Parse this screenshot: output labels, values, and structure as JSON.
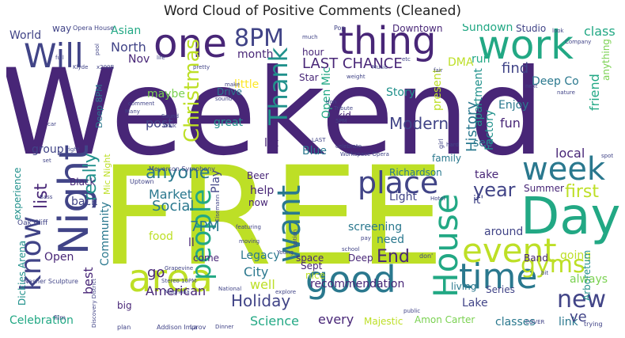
{
  "title": "Word Cloud of Positive Comments (Cleaned)",
  "palette": {
    "dark_purple": "#482677",
    "indigo": "#414487",
    "blue": "#2a788e",
    "teal": "#21918c",
    "green": "#22a884",
    "light_green": "#7ad151",
    "lime": "#bddf26",
    "yellow": "#fde725"
  },
  "words": [
    {
      "text": "Weekend",
      "color": "#482677"
    },
    {
      "text": "FREE",
      "color": "#bddf26"
    },
    {
      "text": "Night",
      "color": "#414487"
    },
    {
      "text": "Day",
      "color": "#22a884"
    },
    {
      "text": "work",
      "color": "#22a884"
    },
    {
      "text": "one",
      "color": "#482677"
    },
    {
      "text": "thing",
      "color": "#482677"
    },
    {
      "text": "Will",
      "color": "#414487"
    },
    {
      "text": "area",
      "color": "#bddf26"
    },
    {
      "text": "good",
      "color": "#2a788e"
    },
    {
      "text": "time",
      "color": "#2a788e"
    },
    {
      "text": "event",
      "color": "#bddf26"
    },
    {
      "text": "week",
      "color": "#2a788e"
    },
    {
      "text": "House",
      "color": "#22a884"
    },
    {
      "text": "want",
      "color": "#2a788e"
    },
    {
      "text": "place",
      "color": "#414487"
    },
    {
      "text": "know",
      "color": "#414487"
    },
    {
      "text": "people",
      "color": "#22a884"
    },
    {
      "text": "gyms",
      "color": "#bddf26"
    },
    {
      "text": "new",
      "color": "#414487"
    },
    {
      "text": "Thank",
      "color": "#21918c"
    },
    {
      "text": "8PM",
      "color": "#414487"
    },
    {
      "text": "Christmas",
      "color": "#bddf26"
    },
    {
      "text": "LAST CHANCE",
      "color": "#482677"
    },
    {
      "text": "Holiday",
      "color": "#414487"
    },
    {
      "text": "Modern",
      "color": "#414487"
    },
    {
      "text": "anyone",
      "color": "#2a788e"
    },
    {
      "text": "list",
      "color": "#482677"
    },
    {
      "text": "really",
      "color": "#21918c"
    },
    {
      "text": "first",
      "color": "#bddf26"
    },
    {
      "text": "year",
      "color": "#414487"
    },
    {
      "text": "End",
      "color": "#482677"
    },
    {
      "text": "Social",
      "color": "#2a788e"
    },
    {
      "text": "Market",
      "color": "#2a788e"
    },
    {
      "text": "7PM",
      "color": "#2a788e"
    },
    {
      "text": "American",
      "color": "#482677"
    },
    {
      "text": "City",
      "color": "#2a788e"
    },
    {
      "text": "well",
      "color": "#bddf26"
    },
    {
      "text": "Science",
      "color": "#22a884"
    },
    {
      "text": "Open Mic",
      "color": "#22a884"
    },
    {
      "text": "History",
      "color": "#2a788e"
    },
    {
      "text": "fun",
      "color": "#482677"
    },
    {
      "text": "Enjoy",
      "color": "#2a788e"
    },
    {
      "text": "find",
      "color": "#414487"
    },
    {
      "text": "friend",
      "color": "#22a884"
    },
    {
      "text": "class",
      "color": "#22a884"
    },
    {
      "text": "Sundown",
      "color": "#22a884"
    },
    {
      "text": "Studio",
      "color": "#414487"
    },
    {
      "text": "Downtown",
      "color": "#482677"
    },
    {
      "text": "Asian",
      "color": "#22a884"
    },
    {
      "text": "North",
      "color": "#414487"
    },
    {
      "text": "World",
      "color": "#414487"
    },
    {
      "text": "Nov",
      "color": "#482677"
    },
    {
      "text": "month",
      "color": "#482677"
    },
    {
      "text": "hour",
      "color": "#482677"
    },
    {
      "text": "little",
      "color": "#fde725"
    },
    {
      "text": "maybe",
      "color": "#7ad151"
    },
    {
      "text": "post",
      "color": "#414487"
    },
    {
      "text": "great",
      "color": "#21918c"
    },
    {
      "text": "Drive",
      "color": "#2a788e"
    },
    {
      "text": "Star",
      "color": "#482677"
    },
    {
      "text": "Story",
      "color": "#21918c"
    },
    {
      "text": "kid",
      "color": "#482677"
    },
    {
      "text": "present",
      "color": "#bddf26"
    },
    {
      "text": "apartment",
      "color": "#21918c"
    },
    {
      "text": "Factory",
      "color": "#21918c"
    },
    {
      "text": "see",
      "color": "#2a788e"
    },
    {
      "text": "DMA",
      "color": "#bddf26"
    },
    {
      "text": "run",
      "color": "#22a884"
    },
    {
      "text": "Deep Co",
      "color": "#2a788e"
    },
    {
      "text": "anything",
      "color": "#7ad151"
    },
    {
      "text": "lot",
      "color": "#482677"
    },
    {
      "text": "Blue",
      "color": "#2a788e"
    },
    {
      "text": "Light",
      "color": "#414487"
    },
    {
      "text": "Richardson",
      "color": "#2a788e"
    },
    {
      "text": "family",
      "color": "#2a788e"
    },
    {
      "text": "take",
      "color": "#482677"
    },
    {
      "text": "it'",
      "color": "#414487"
    },
    {
      "text": "local",
      "color": "#482677"
    },
    {
      "text": "help",
      "color": "#482677"
    },
    {
      "text": "Beer",
      "color": "#482677"
    },
    {
      "text": "now",
      "color": "#482677"
    },
    {
      "text": "group",
      "color": "#414487"
    },
    {
      "text": "experience",
      "color": "#21918c"
    },
    {
      "text": "Black",
      "color": "#482677"
    },
    {
      "text": "back",
      "color": "#414487"
    },
    {
      "text": "Community",
      "color": "#2a788e"
    },
    {
      "text": "best",
      "color": "#482677"
    },
    {
      "text": "Open",
      "color": "#482677"
    },
    {
      "text": "go",
      "color": "#482677"
    },
    {
      "text": "food",
      "color": "#bddf26"
    },
    {
      "text": "ll",
      "color": "#482677"
    },
    {
      "text": "come",
      "color": "#482677"
    },
    {
      "text": "Legacy",
      "color": "#2a788e"
    },
    {
      "text": "screening",
      "color": "#2a788e"
    },
    {
      "text": "need",
      "color": "#2a788e"
    },
    {
      "text": "around",
      "color": "#414487"
    },
    {
      "text": "going",
      "color": "#bddf26"
    },
    {
      "text": "Deep",
      "color": "#482677"
    },
    {
      "text": "space",
      "color": "#482677"
    },
    {
      "text": "nice",
      "color": "#bddf26"
    },
    {
      "text": "Sept",
      "color": "#482677"
    },
    {
      "text": "recommendation",
      "color": "#482677"
    },
    {
      "text": "every",
      "color": "#482677"
    },
    {
      "text": "Majestic",
      "color": "#bddf26"
    },
    {
      "text": "Celebration",
      "color": "#22a884"
    },
    {
      "text": "living",
      "color": "#2a788e"
    },
    {
      "text": "Lake",
      "color": "#414487"
    },
    {
      "text": "Series",
      "color": "#414487"
    },
    {
      "text": "Amon Carter",
      "color": "#7ad151"
    },
    {
      "text": "classes",
      "color": "#2a788e"
    },
    {
      "text": "link",
      "color": "#2a788e"
    },
    {
      "text": "Band",
      "color": "#482677"
    },
    {
      "text": "always",
      "color": "#7ad151"
    },
    {
      "text": "ve",
      "color": "#414487"
    },
    {
      "text": "Play",
      "color": "#414487"
    },
    {
      "text": "Summer",
      "color": "#482677"
    },
    {
      "text": "Arboretum",
      "color": "#21918c"
    },
    {
      "text": "big",
      "color": "#482677"
    },
    {
      "text": "Dickies Arena",
      "color": "#21918c"
    },
    {
      "text": "Mic Night",
      "color": "#bddf26"
    },
    {
      "text": "Deep 8PM",
      "color": "#2a788e"
    },
    {
      "text": "Oak Cliff",
      "color": "#414487"
    },
    {
      "text": "Nasher Sculpture",
      "color": "#414487"
    },
    {
      "text": "Meyerson Symphony",
      "color": "#414487"
    },
    {
      "text": "Uptown",
      "color": "#414487"
    },
    {
      "text": "Opera House",
      "color": "#414487"
    },
    {
      "text": "way",
      "color": "#414487"
    },
    {
      "text": "Pop",
      "color": "#414487"
    },
    {
      "text": "Tribute",
      "color": "#414487"
    },
    {
      "text": "Addison Improv",
      "color": "#414487"
    },
    {
      "text": "plan",
      "color": "#414487"
    },
    {
      "text": "Grapevine",
      "color": "#414487"
    },
    {
      "text": "Young",
      "color": "#414487"
    },
    {
      "text": "moving",
      "color": "#414487"
    },
    {
      "text": "school",
      "color": "#414487"
    },
    {
      "text": "pay",
      "color": "#414487"
    },
    {
      "text": "public",
      "color": "#414487"
    },
    {
      "text": "film",
      "color": "#414487"
    },
    {
      "text": "COVER",
      "color": "#414487"
    },
    {
      "text": "trying",
      "color": "#414487"
    },
    {
      "text": "bit",
      "color": "#414487"
    },
    {
      "text": "Stereo 10PM",
      "color": "#414487"
    },
    {
      "text": "Magnolia",
      "color": "#414487"
    },
    {
      "text": "National",
      "color": "#414487"
    },
    {
      "text": "explore",
      "color": "#414487"
    },
    {
      "text": "Discovery District",
      "color": "#414487"
    },
    {
      "text": "Dinner",
      "color": "#414487"
    },
    {
      "text": "La",
      "color": "#414487"
    },
    {
      "text": "Eisemann",
      "color": "#414487"
    },
    {
      "text": "featuring",
      "color": "#414487"
    },
    {
      "text": "option",
      "color": "#414487"
    },
    {
      "text": "Hotel",
      "color": "#414487"
    },
    {
      "text": "spot",
      "color": "#414487"
    },
    {
      "text": "nature",
      "color": "#414487"
    },
    {
      "text": "next",
      "color": "#414487"
    },
    {
      "text": "Company",
      "color": "#414487"
    },
    {
      "text": "look",
      "color": "#414487"
    },
    {
      "text": "pretty",
      "color": "#414487"
    },
    {
      "text": "life",
      "color": "#414487"
    },
    {
      "text": "Klyde",
      "color": "#414487"
    },
    {
      "text": "x200B",
      "color": "#414487"
    },
    {
      "text": "full",
      "color": "#414487"
    },
    {
      "text": "much",
      "color": "#414487"
    },
    {
      "text": "weight",
      "color": "#414487"
    },
    {
      "text": "make",
      "color": "#414487"
    },
    {
      "text": "sound",
      "color": "#414487"
    },
    {
      "text": "Walk",
      "color": "#414487"
    },
    {
      "text": "comment",
      "color": "#414487"
    },
    {
      "text": "car",
      "color": "#414487"
    },
    {
      "text": "right",
      "color": "#414487"
    },
    {
      "text": "set",
      "color": "#414487"
    },
    {
      "text": "Bass",
      "color": "#414487"
    },
    {
      "text": "celebrate",
      "color": "#414487"
    },
    {
      "text": "hard",
      "color": "#414487"
    },
    {
      "text": "LAST",
      "color": "#414487"
    },
    {
      "text": "Workspace Opera",
      "color": "#414487"
    },
    {
      "text": "5PM",
      "color": "#414487"
    },
    {
      "text": "don",
      "color": "#414487"
    },
    {
      "text": "don'",
      "color": "#414487"
    },
    {
      "text": "girl",
      "color": "#414487"
    },
    {
      "text": "etc",
      "color": "#414487"
    },
    {
      "text": "pool",
      "color": "#414487"
    },
    {
      "text": "Music",
      "color": "#414487"
    },
    {
      "text": "fair",
      "color": "#414487"
    },
    {
      "text": "Sound",
      "color": "#414487"
    },
    {
      "text": "Many",
      "color": "#414487"
    }
  ]
}
